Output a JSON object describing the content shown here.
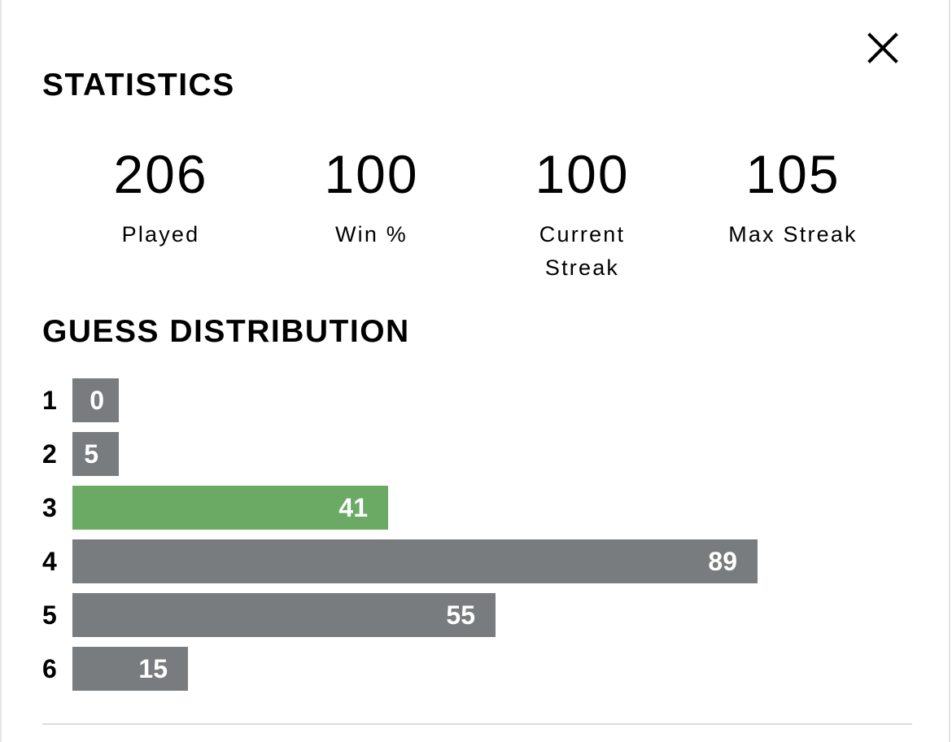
{
  "close_icon": "close-icon",
  "statistics": {
    "title": "STATISTICS",
    "items": [
      {
        "value": "206",
        "label": "Played"
      },
      {
        "value": "100",
        "label": "Win %"
      },
      {
        "value": "100",
        "label": "Current Streak"
      },
      {
        "value": "105",
        "label": "Max Streak"
      }
    ]
  },
  "guess_distribution": {
    "title": "GUESS DISTRIBUTION",
    "rows": [
      {
        "guess": "1",
        "count": "0"
      },
      {
        "guess": "2",
        "count": "5"
      },
      {
        "guess": "3",
        "count": "41"
      },
      {
        "guess": "4",
        "count": "89"
      },
      {
        "guess": "5",
        "count": "55"
      },
      {
        "guess": "6",
        "count": "15"
      }
    ],
    "highlighted_guess": "3",
    "colors": {
      "bar": "#787c7e",
      "highlight": "#6aaa64"
    }
  }
}
